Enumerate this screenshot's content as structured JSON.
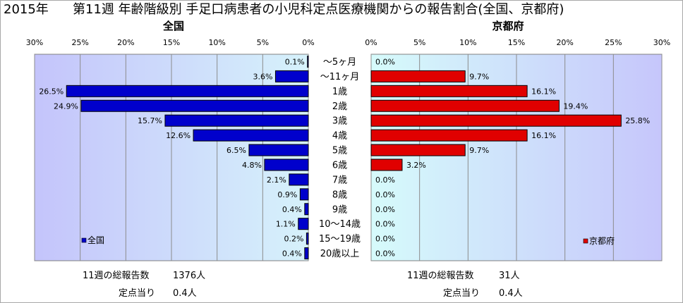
{
  "header": {
    "year": "2015年",
    "title": "第11週 年齢階級別 手足口病患者の小児科定点医療機関からの報告割合(全国、京都府)"
  },
  "chart_data": [
    {
      "type": "bar",
      "orientation": "horizontal",
      "title": "全国",
      "categories": [
        "～5ヶ月",
        "～11ヶ月",
        "1歳",
        "2歳",
        "3歳",
        "4歳",
        "5歳",
        "6歳",
        "7歳",
        "8歳",
        "9歳",
        "10～14歳",
        "15～19歳",
        "20歳以上"
      ],
      "series": [
        {
          "name": "全国",
          "values": [
            0.1,
            3.6,
            26.5,
            24.9,
            15.7,
            12.6,
            6.5,
            4.8,
            2.1,
            0.9,
            0.4,
            1.1,
            0.2,
            0.4
          ],
          "color": "#0000cc"
        }
      ],
      "unit": "%",
      "xlim": [
        0,
        30
      ],
      "xticks": [
        0,
        5,
        10,
        15,
        20,
        25,
        30
      ],
      "x_reversed": true,
      "grid": true,
      "legend": "bottom-left"
    },
    {
      "type": "bar",
      "orientation": "horizontal",
      "title": "京都府",
      "categories": [
        "～5ヶ月",
        "～11ヶ月",
        "1歳",
        "2歳",
        "3歳",
        "4歳",
        "5歳",
        "6歳",
        "7歳",
        "8歳",
        "9歳",
        "10～14歳",
        "15～19歳",
        "20歳以上"
      ],
      "series": [
        {
          "name": "京都府",
          "values": [
            0.0,
            9.7,
            16.1,
            19.4,
            25.8,
            16.1,
            9.7,
            3.2,
            0.0,
            0.0,
            0.0,
            0.0,
            0.0,
            0.0
          ],
          "color": "#e00000"
        }
      ],
      "unit": "%",
      "xlim": [
        0,
        30
      ],
      "xticks": [
        0,
        5,
        10,
        15,
        20,
        25,
        30
      ],
      "x_reversed": false,
      "grid": true,
      "legend": "bottom-right"
    }
  ],
  "summary": {
    "national": {
      "total_label": "11週の総報告数",
      "total_value": "1376人",
      "per_site_label": "定点当り",
      "per_site_value": "0.4人"
    },
    "kyoto": {
      "total_label": "11週の総報告数",
      "total_value": "31人",
      "per_site_label": "定点当り",
      "per_site_value": "0.4人"
    }
  }
}
